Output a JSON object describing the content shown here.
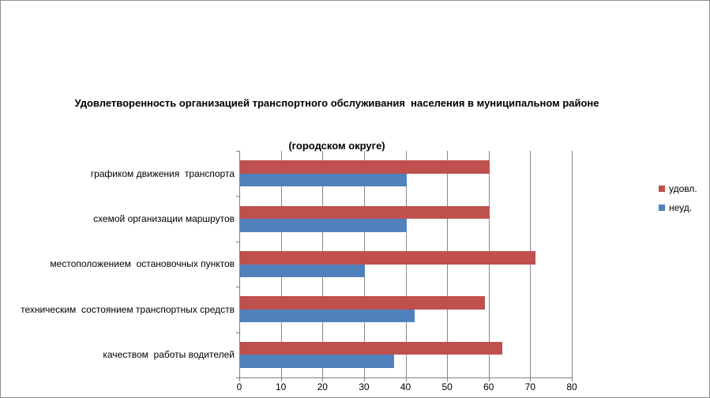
{
  "chart_data": {
    "type": "bar",
    "orientation": "horizontal",
    "title_line1": "Удовлетворенность организацией транспортного обслуживания  населения в муниципальном районе",
    "title_line2": "(городском округе)",
    "categories": [
      "графиком движения  транспорта",
      "схемой организации маршрутов",
      "местоположением  остановочных пунктов",
      "техническим  состоянием транспортных средств",
      "качеством  работы водителей"
    ],
    "series": [
      {
        "name": "удовл.",
        "color": "#C0504D",
        "values": [
          60,
          60,
          71,
          59,
          63
        ]
      },
      {
        "name": "неуд.",
        "color": "#4F81BD",
        "values": [
          40,
          40,
          30,
          42,
          37
        ]
      }
    ],
    "xlim": [
      0,
      80
    ],
    "x_ticks": [
      0,
      10,
      20,
      30,
      40,
      50,
      60,
      70,
      80
    ],
    "grid": "vertical-gridlines",
    "legend_position": "right",
    "colors": {
      "gridline": "#898989",
      "axis": "#808080",
      "text": "#000000",
      "background": "#ffffff"
    }
  }
}
